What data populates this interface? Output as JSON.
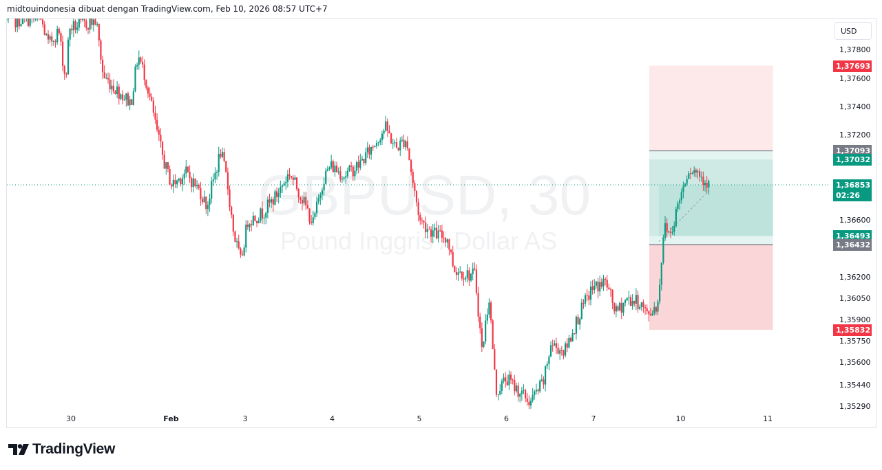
{
  "header": {
    "text": "midtouindonesia dibuat dengan TradingView.com, Feb 10, 2026 08:57 UTC+7"
  },
  "watermark": {
    "symbol": "GBPUSD, 30",
    "description": "Pound Inggris / Dollar AS"
  },
  "currency": "USD",
  "logo": {
    "text": "TradingView"
  },
  "colors": {
    "up": "#089981",
    "down": "#f23645",
    "gray": "#787b86",
    "profit_zone": "#b2dfdb",
    "loss_zone": "#f7c9ce"
  },
  "chart_data": {
    "type": "candlestick",
    "symbol": "GBPUSD",
    "timeframe": "30",
    "ylim": [
      1.3527,
      1.3802
    ],
    "x_ticks": [
      {
        "label": "30",
        "day": 0
      },
      {
        "label": "Feb",
        "day": 1.15
      },
      {
        "label": "3",
        "day": 2
      },
      {
        "label": "4",
        "day": 3
      },
      {
        "label": "5",
        "day": 4
      },
      {
        "label": "6",
        "day": 5
      },
      {
        "label": "7",
        "day": 6
      },
      {
        "label": "10",
        "day": 7
      },
      {
        "label": "11",
        "day": 8
      }
    ],
    "y_ticks": [
      "1,37800",
      "1,37600",
      "1,37400",
      "1,37200",
      "1,36600",
      "1,36200",
      "1,36050",
      "1,35900",
      "1,35750",
      "1,35600",
      "1,35440",
      "1,35290"
    ],
    "y_tick_values": [
      1.378,
      1.376,
      1.374,
      1.372,
      1.366,
      1.362,
      1.3605,
      1.359,
      1.3575,
      1.356,
      1.3544,
      1.3529
    ],
    "price_path": [
      [
        -0.74,
        1.3801
      ],
      [
        -0.66,
        1.3801
      ],
      [
        -0.5,
        1.3802
      ],
      [
        -0.34,
        1.3801
      ],
      [
        -0.26,
        1.3784
      ],
      [
        -0.14,
        1.3794
      ],
      [
        -0.06,
        1.3758
      ],
      [
        -0.02,
        1.3796
      ],
      [
        0.13,
        1.3798
      ],
      [
        0.29,
        1.3801
      ],
      [
        0.37,
        1.3762
      ],
      [
        0.53,
        1.3752
      ],
      [
        0.69,
        1.3743
      ],
      [
        0.77,
        1.3777
      ],
      [
        0.85,
        1.3762
      ],
      [
        0.92,
        1.3743
      ],
      [
        1.0,
        1.3719
      ],
      [
        1.08,
        1.3699
      ],
      [
        1.16,
        1.3685
      ],
      [
        1.32,
        1.3694
      ],
      [
        1.49,
        1.368
      ],
      [
        1.56,
        1.367
      ],
      [
        1.72,
        1.3709
      ],
      [
        1.79,
        1.3689
      ],
      [
        1.87,
        1.3651
      ],
      [
        1.95,
        1.3631
      ],
      [
        2.03,
        1.366
      ],
      [
        2.19,
        1.3665
      ],
      [
        2.35,
        1.3677
      ],
      [
        2.51,
        1.3694
      ],
      [
        2.66,
        1.3675
      ],
      [
        2.78,
        1.3658
      ],
      [
        2.9,
        1.369
      ],
      [
        2.98,
        1.3699
      ],
      [
        3.14,
        1.3692
      ],
      [
        3.3,
        1.3699
      ],
      [
        3.45,
        1.3711
      ],
      [
        3.61,
        1.3726
      ],
      [
        3.73,
        1.3711
      ],
      [
        3.85,
        1.3718
      ],
      [
        3.93,
        1.3685
      ],
      [
        4.01,
        1.366
      ],
      [
        4.17,
        1.3651
      ],
      [
        4.32,
        1.3648
      ],
      [
        4.4,
        1.3626
      ],
      [
        4.56,
        1.3622
      ],
      [
        4.64,
        1.3622
      ],
      [
        4.72,
        1.3568
      ],
      [
        4.8,
        1.3607
      ],
      [
        4.88,
        1.3539
      ],
      [
        5.0,
        1.3549
      ],
      [
        5.11,
        1.3542
      ],
      [
        5.27,
        1.3532
      ],
      [
        5.43,
        1.3547
      ],
      [
        5.51,
        1.3573
      ],
      [
        5.67,
        1.3568
      ],
      [
        5.83,
        1.3593
      ],
      [
        5.98,
        1.3612
      ],
      [
        6.14,
        1.3617
      ],
      [
        6.26,
        1.3595
      ],
      [
        6.38,
        1.3605
      ],
      [
        6.54,
        1.3602
      ],
      [
        6.62,
        1.3593
      ],
      [
        6.74,
        1.3602
      ],
      [
        6.81,
        1.3656
      ],
      [
        6.89,
        1.3651
      ],
      [
        6.97,
        1.3672
      ],
      [
        7.09,
        1.3697
      ],
      [
        7.21,
        1.3694
      ],
      [
        7.33,
        1.3685
      ]
    ],
    "current_price": {
      "value": 1.36853,
      "label": "1,36853",
      "countdown": "02:26"
    },
    "positions": [
      {
        "side": "short",
        "entry": 1.37093,
        "entry_label": "1,37093",
        "stop": 1.37693,
        "stop_label": "1,37693",
        "target": 1.36432,
        "target_label": "1,36432",
        "from_day": 6.64,
        "to_day": 8.06
      },
      {
        "side": "long",
        "entry": 1.36493,
        "entry_label": "1,36493",
        "target": 1.37032,
        "target_label": "1,37032",
        "stop": 1.35832,
        "stop_label": "1,35832",
        "from_day": 6.64,
        "to_day": 8.06
      }
    ]
  }
}
